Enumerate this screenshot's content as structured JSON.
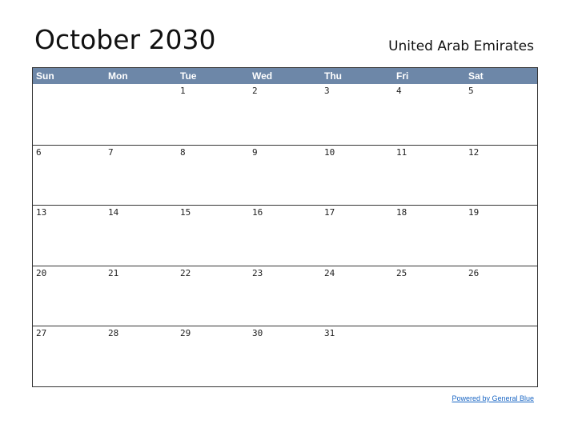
{
  "title": "October 2030",
  "region": "United Arab Emirates",
  "credit": "Powered by General Blue",
  "colors": {
    "header_bg": "#6d87a8",
    "header_text": "#ffffff",
    "credit_link": "#1a66c4"
  },
  "weekdays": [
    "Sun",
    "Mon",
    "Tue",
    "Wed",
    "Thu",
    "Fri",
    "Sat"
  ],
  "weeks": [
    [
      "",
      "",
      "1",
      "2",
      "3",
      "4",
      "5"
    ],
    [
      "6",
      "7",
      "8",
      "9",
      "10",
      "11",
      "12"
    ],
    [
      "13",
      "14",
      "15",
      "16",
      "17",
      "18",
      "19"
    ],
    [
      "20",
      "21",
      "22",
      "23",
      "24",
      "25",
      "26"
    ],
    [
      "27",
      "28",
      "29",
      "30",
      "31",
      "",
      ""
    ]
  ]
}
